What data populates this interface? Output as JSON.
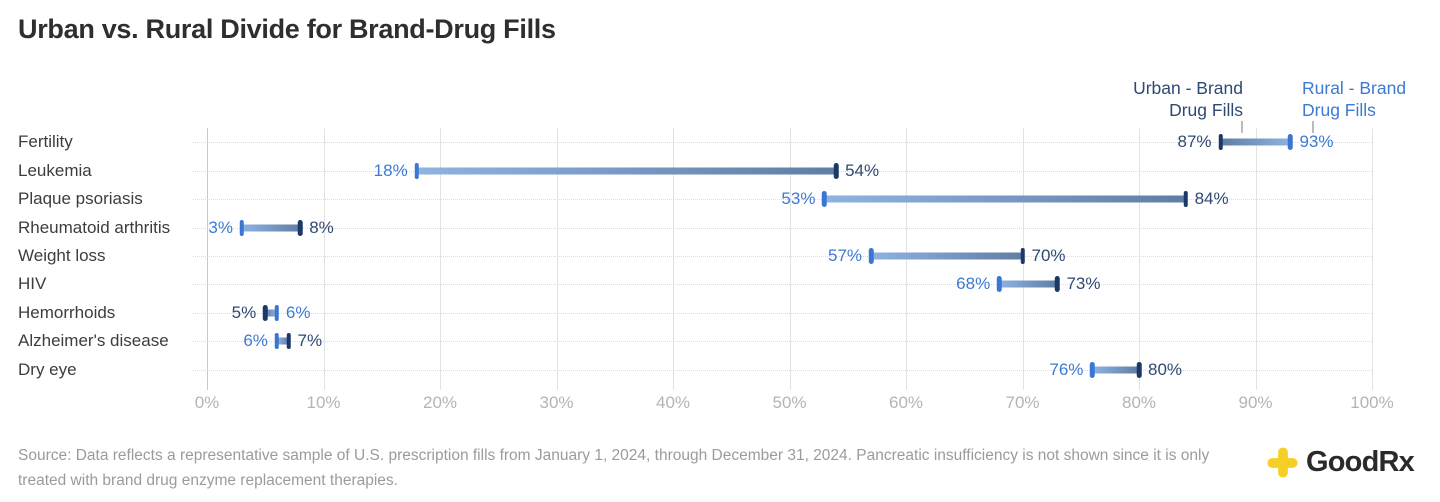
{
  "title": "Urban vs. Rural Divide for Brand-Drug Fills",
  "legend": {
    "urban_label": "Urban - Brand\nDrug Fills",
    "rural_label": "Rural - Brand\nDrug Fills"
  },
  "chart_data": {
    "type": "dumbbell",
    "title": "Urban vs. Rural Divide for Brand-Drug Fills",
    "categories": [
      "Fertility",
      "Leukemia",
      "Plaque psoriasis",
      "Rheumatoid arthritis",
      "Weight loss",
      "HIV",
      "Hemorrhoids",
      "Alzheimer's disease",
      "Dry eye"
    ],
    "series": [
      {
        "name": "Urban - Brand Drug Fills",
        "values": [
          87,
          54,
          84,
          8,
          70,
          73,
          5,
          7,
          80
        ]
      },
      {
        "name": "Rural - Brand Drug Fills",
        "values": [
          93,
          18,
          53,
          3,
          57,
          68,
          6,
          6,
          76
        ]
      }
    ],
    "value_label_format": "{value}%",
    "x_ticks": [
      "0%",
      "10%",
      "20%",
      "30%",
      "40%",
      "50%",
      "60%",
      "70%",
      "80%",
      "90%",
      "100%"
    ],
    "xlim": [
      0,
      100
    ],
    "grid": "vertical solid lines each 10%, dotted horizontal row guides",
    "legend_position": "top-right above first row"
  },
  "colors": {
    "urban_label": "#2F4A72",
    "urban_cap": "#1C3866",
    "rural_label": "#3D7AD2",
    "rural_cap": "#3A76D2",
    "bar_urban_end": "#5F7EA4",
    "bar_rural_end": "#8FB3E2",
    "goodrx_yellow": "#F6CF26"
  },
  "source_text": "Source: Data reflects a representative sample of U.S. prescription fills from January 1, 2024, through December 31, 2024. Pancreatic insufficiency is not shown since it is only treated with brand drug enzyme replacement therapies.",
  "logo": {
    "text": "GoodRx"
  }
}
